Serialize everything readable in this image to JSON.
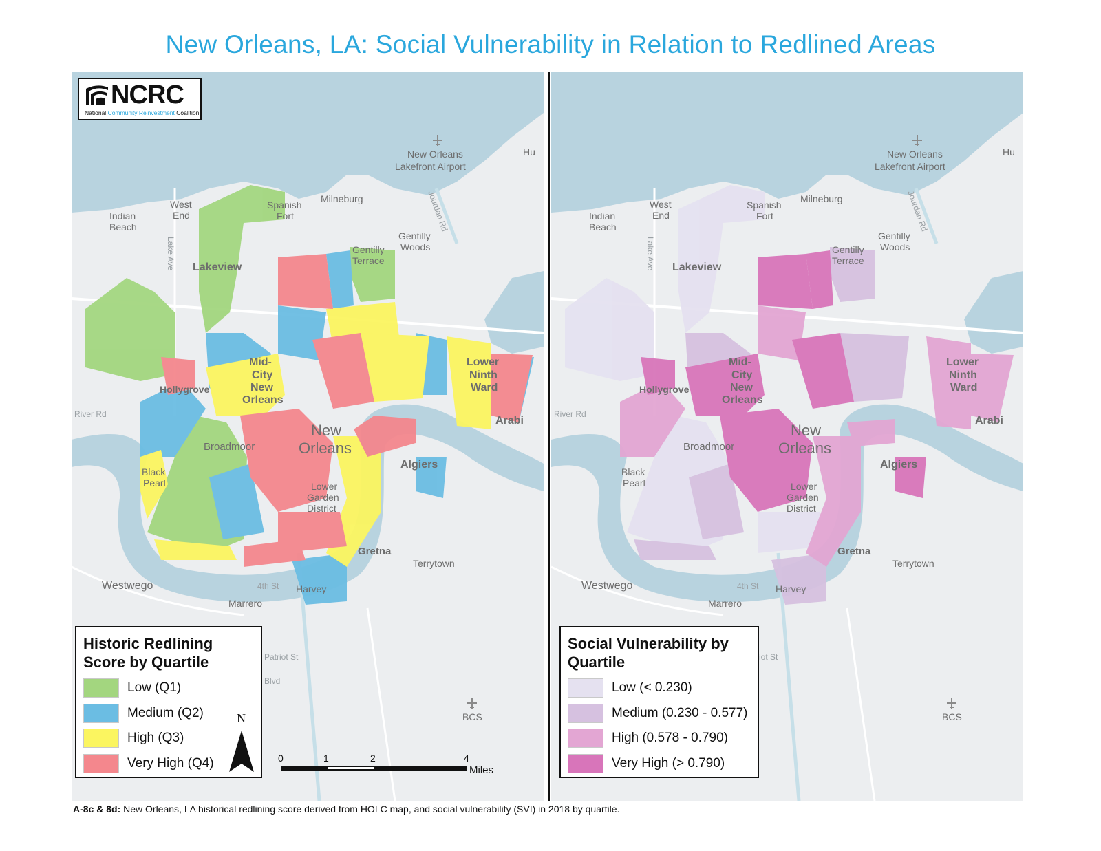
{
  "title": "New Orleans, LA: Social Vulnerability in Relation to Redlined Areas",
  "logo": {
    "brand": "NCRC",
    "sub_prefix": "National ",
    "sub_highlight": "Community Reinvestment",
    "sub_suffix": " Coalition"
  },
  "place_labels": {
    "airport": "New Orleans",
    "airport2": "Lakefront Airport",
    "hu": "Hu",
    "indian": "Indian",
    "beach": "Beach",
    "west": "West",
    "end": "End",
    "spanish": "Spanish",
    "fort": "Fort",
    "milneburg": "Milneburg",
    "gentilly": "Gentilly",
    "woods": "Woods",
    "gentilly2": "Gentilly",
    "terrace": "Terrace",
    "lakeview": "Lakeview",
    "mid": "Mid-",
    "city": "City",
    "new": "New",
    "orleans": "Orleans",
    "hollygrove": "Hollygrove",
    "lower": "Lower",
    "ninth": "Ninth",
    "ward": "Ward",
    "arabi": "Arabi",
    "new_big": "New",
    "orleans_big": "Orleans",
    "broadmoor": "Broadmoor",
    "algiers": "Algiers",
    "black": "Black",
    "pearl": "Pearl",
    "lower2": "Lower",
    "garden": "Garden",
    "district": "District",
    "gretna": "Gretna",
    "terrytown": "Terrytown",
    "westwego": "Westwego",
    "harvey": "Harvey",
    "marrero": "Marrero",
    "bcs": "BCS",
    "fourth_st": "4th St",
    "patriot_st": "Patriot St",
    "blvd": "Blvd",
    "river_rd": "River Rd",
    "jourdan_rd": "Jourdan Rd",
    "lake_ave": "Lake Ave"
  },
  "left_legend": {
    "title": "Historic Redlining Score by Quartile",
    "items": [
      {
        "label": "Low (Q1)",
        "color": "#a3d67f"
      },
      {
        "label": "Medium (Q2)",
        "color": "#6bbde3"
      },
      {
        "label": "High (Q3)",
        "color": "#fbf560"
      },
      {
        "label": "Very High (Q4)",
        "color": "#f4878d"
      }
    ]
  },
  "right_legend": {
    "title": "Social Vulnerability by Quartile",
    "items": [
      {
        "label": "Low (< 0.230)",
        "color": "#e5e1f0"
      },
      {
        "label": "Medium (0.230 - 0.577)",
        "color": "#d6c1e0"
      },
      {
        "label": "High (0.578 - 0.790)",
        "color": "#e3a6d3"
      },
      {
        "label": "Very High (> 0.790)",
        "color": "#d875ba"
      }
    ]
  },
  "north_label": "N",
  "scale": {
    "ticks": [
      "0",
      "1",
      "2",
      "4"
    ],
    "unit": "Miles"
  },
  "caption": {
    "bold": "A-8c & 8d:",
    "text": " New Orleans, LA historical redlining score derived from HOLC map, and social vulnerability (SVI) in 2018 by quartile."
  },
  "colors": {
    "water": "#b8d3df",
    "land": "#eceef0",
    "road": "#ffffff"
  }
}
